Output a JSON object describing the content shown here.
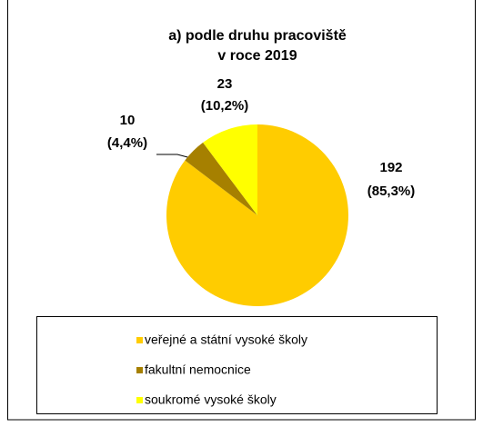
{
  "chart_data": {
    "type": "pie",
    "title": [
      "a) podle druhu pracoviště",
      "v roce 2019"
    ],
    "categories": [
      "veřejné a státní vysoké školy",
      "fakultní nemocnice",
      "soukromé vysoké školy"
    ],
    "values": [
      192,
      10,
      23
    ],
    "value_labels": [
      [
        "192",
        "(85,3%)"
      ],
      [
        "10",
        "(4,4%)"
      ],
      [
        "23",
        "(10,2%)"
      ]
    ],
    "colors": [
      "#ffcc00",
      "#a68000",
      "#ffff00"
    ]
  }
}
